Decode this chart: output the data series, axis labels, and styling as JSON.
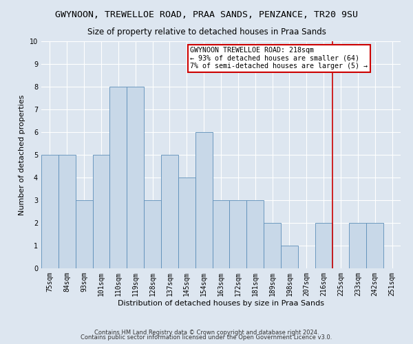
{
  "title": "GWYNOON, TREWELLOE ROAD, PRAA SANDS, PENZANCE, TR20 9SU",
  "subtitle": "Size of property relative to detached houses in Praa Sands",
  "xlabel": "Distribution of detached houses by size in Praa Sands",
  "ylabel": "Number of detached properties",
  "footer1": "Contains HM Land Registry data © Crown copyright and database right 2024.",
  "footer2": "Contains public sector information licensed under the Open Government Licence v3.0.",
  "categories": [
    "75sqm",
    "84sqm",
    "93sqm",
    "101sqm",
    "110sqm",
    "119sqm",
    "128sqm",
    "137sqm",
    "145sqm",
    "154sqm",
    "163sqm",
    "172sqm",
    "181sqm",
    "189sqm",
    "198sqm",
    "207sqm",
    "216sqm",
    "225sqm",
    "233sqm",
    "242sqm",
    "251sqm"
  ],
  "values": [
    5,
    5,
    3,
    5,
    8,
    8,
    3,
    5,
    4,
    6,
    3,
    3,
    3,
    2,
    1,
    0,
    2,
    0,
    2,
    2,
    0
  ],
  "bar_color": "#c8d8e8",
  "bar_edgecolor": "#5b8db8",
  "ylim": [
    0,
    10
  ],
  "yticks": [
    0,
    1,
    2,
    3,
    4,
    5,
    6,
    7,
    8,
    9,
    10
  ],
  "property_line_x": 16.5,
  "property_line_color": "#cc0000",
  "annotation_text_line1": "GWYNOON TREWELLOE ROAD: 218sqm",
  "annotation_text_line2": "← 93% of detached houses are smaller (64)",
  "annotation_text_line3": "7% of semi-detached houses are larger (5) →",
  "annotation_box_facecolor": "#ffffff",
  "annotation_box_edgecolor": "#cc0000",
  "bg_color": "#dde6f0",
  "grid_color": "#ffffff",
  "title_fontsize": 9.5,
  "subtitle_fontsize": 8.5,
  "xlabel_fontsize": 8,
  "ylabel_fontsize": 8,
  "tick_fontsize": 7,
  "annotation_fontsize": 7.2,
  "footer_fontsize": 6
}
